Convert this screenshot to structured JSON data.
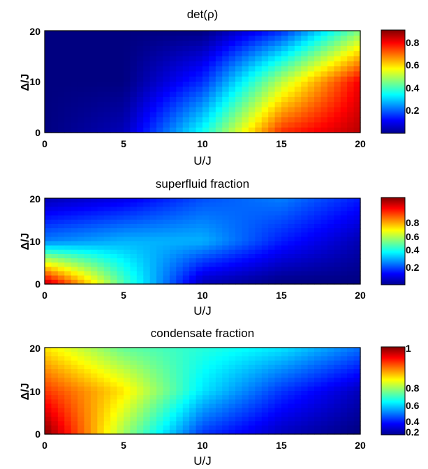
{
  "colormap": "jet",
  "chart_data": [
    {
      "type": "heatmap",
      "title": "det(ρ)",
      "xlabel": "U/J",
      "ylabel": "Δ/J",
      "xlim": [
        0,
        20
      ],
      "ylim": [
        0,
        20
      ],
      "xticks": [
        "0",
        "5",
        "10",
        "15",
        "20"
      ],
      "yticks": [
        "0",
        "10",
        "20"
      ],
      "colorbar": {
        "ticks": [
          "0.2",
          "0.4",
          "0.6",
          "0.8"
        ],
        "range": [
          0.0,
          0.9
        ]
      },
      "grid_samples": {
        "x": [
          0,
          5,
          10,
          15,
          20
        ],
        "y": [
          0,
          10,
          20
        ],
        "z": [
          [
            0.0,
            0.05,
            0.35,
            0.75,
            0.85
          ],
          [
            0.0,
            0.0,
            0.15,
            0.5,
            0.8
          ],
          [
            0.0,
            0.0,
            0.0,
            0.15,
            0.45
          ]
        ]
      }
    },
    {
      "type": "heatmap",
      "title": "superfluid fraction",
      "xlabel": "U/J",
      "ylabel": "Δ/J",
      "xlim": [
        0,
        20
      ],
      "ylim": [
        0,
        20
      ],
      "xticks": [
        "0",
        "5",
        "10",
        "15",
        "20"
      ],
      "yticks": [
        "0",
        "10",
        "20"
      ],
      "colorbar": {
        "ticks": [
          "0.2",
          "0.4",
          "0.6",
          "0.8"
        ],
        "range": [
          0.0,
          1.0
        ]
      },
      "grid_samples": {
        "x": [
          0,
          5,
          10,
          15,
          20
        ],
        "y": [
          0,
          10,
          20
        ],
        "z": [
          [
            0.95,
            0.45,
            0.05,
            0.0,
            0.0
          ],
          [
            0.25,
            0.3,
            0.3,
            0.15,
            0.05
          ],
          [
            0.05,
            0.1,
            0.2,
            0.25,
            0.15
          ]
        ]
      }
    },
    {
      "type": "heatmap",
      "title": "condensate fraction",
      "xlabel": "U/J",
      "ylabel": "Δ/J",
      "xlim": [
        0,
        20
      ],
      "ylim": [
        0,
        20
      ],
      "xticks": [
        "0",
        "5",
        "10",
        "15",
        "20"
      ],
      "yticks": [
        "0",
        "10",
        "20"
      ],
      "colorbar": {
        "ticks": [
          "0.2",
          "0.4",
          "0.6",
          "0.8",
          "1"
        ],
        "range": [
          0.15,
          1.0
        ]
      },
      "grid_samples": {
        "x": [
          0,
          5,
          10,
          15,
          20
        ],
        "y": [
          0,
          10,
          20
        ],
        "z": [
          [
            1.0,
            0.6,
            0.3,
            0.2,
            0.15
          ],
          [
            0.85,
            0.7,
            0.45,
            0.3,
            0.2
          ],
          [
            0.7,
            0.55,
            0.5,
            0.45,
            0.35
          ]
        ]
      }
    }
  ]
}
